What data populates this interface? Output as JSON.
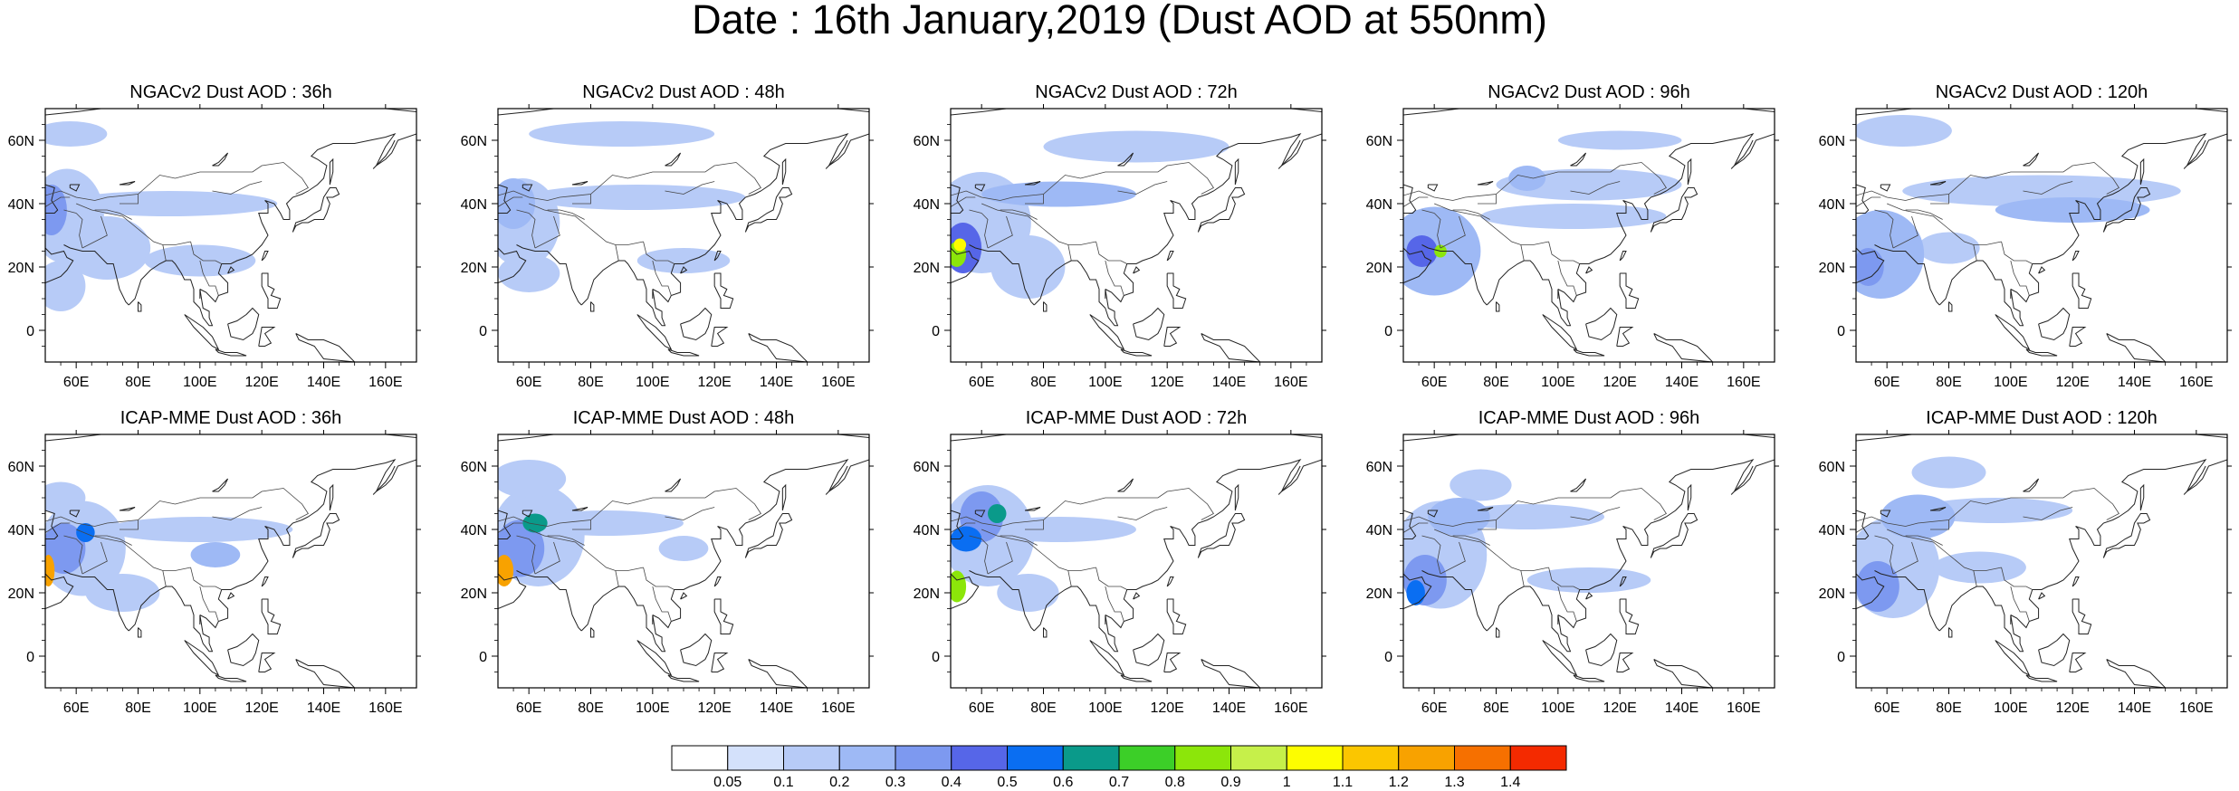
{
  "title": "Date : 16th January,2019 (Dust AOD at 550nm)",
  "axes": {
    "x_ticks": [
      "60E",
      "80E",
      "100E",
      "120E",
      "140E",
      "160E"
    ],
    "x_values": [
      60,
      80,
      100,
      120,
      140,
      160
    ],
    "y_ticks": [
      "60N",
      "40N",
      "20N",
      "0"
    ],
    "y_values": [
      60,
      40,
      20,
      0
    ],
    "lon_range": [
      50,
      170
    ],
    "lat_range": [
      -10,
      70
    ]
  },
  "colorbar": {
    "labels": [
      "0.05",
      "0.1",
      "0.2",
      "0.3",
      "0.4",
      "0.5",
      "0.6",
      "0.7",
      "0.8",
      "0.9",
      "1",
      "1.1",
      "1.2",
      "1.3",
      "1.4"
    ],
    "colors": [
      "#ffffff",
      "#d4e1fb",
      "#b7cbf7",
      "#9eb9f5",
      "#7d99f0",
      "#5666e8",
      "#0a6ef2",
      "#0a9a8a",
      "#3ccf28",
      "#8ce60a",
      "#c6f04a",
      "#fdfd00",
      "#fbc600",
      "#f8a200",
      "#f67000",
      "#f42a00"
    ]
  },
  "panels": [
    {
      "title": "NGACv2 Dust AOD : 36h",
      "blobs": [
        {
          "lon": 57,
          "lat": 36,
          "rlon": 12,
          "rlat": 15,
          "v": 0.1
        },
        {
          "lon": 52,
          "lat": 38,
          "rlon": 5,
          "rlat": 8,
          "v": 0.3
        },
        {
          "lon": 58,
          "lat": 62,
          "rlon": 12,
          "rlat": 4,
          "v": 0.1
        },
        {
          "lon": 70,
          "lat": 26,
          "rlon": 14,
          "rlat": 10,
          "v": 0.1
        },
        {
          "lon": 90,
          "lat": 40,
          "rlon": 35,
          "rlat": 4,
          "v": 0.1
        },
        {
          "lon": 55,
          "lat": 14,
          "rlon": 8,
          "rlat": 8,
          "v": 0.1
        },
        {
          "lon": 100,
          "lat": 22,
          "rlon": 18,
          "rlat": 5,
          "v": 0.1
        }
      ]
    },
    {
      "title": "NGACv2 Dust AOD : 48h",
      "blobs": [
        {
          "lon": 58,
          "lat": 34,
          "rlon": 12,
          "rlat": 14,
          "v": 0.1
        },
        {
          "lon": 55,
          "lat": 40,
          "rlon": 7,
          "rlat": 8,
          "v": 0.2
        },
        {
          "lon": 90,
          "lat": 62,
          "rlon": 30,
          "rlat": 4,
          "v": 0.1
        },
        {
          "lon": 95,
          "lat": 42,
          "rlon": 35,
          "rlat": 4,
          "v": 0.1
        },
        {
          "lon": 60,
          "lat": 18,
          "rlon": 10,
          "rlat": 6,
          "v": 0.1
        },
        {
          "lon": 110,
          "lat": 22,
          "rlon": 15,
          "rlat": 4,
          "v": 0.1
        }
      ]
    },
    {
      "title": "NGACv2 Dust AOD : 72h",
      "blobs": [
        {
          "lon": 60,
          "lat": 34,
          "rlon": 16,
          "rlat": 16,
          "v": 0.1
        },
        {
          "lon": 54,
          "lat": 26,
          "rlon": 6,
          "rlat": 8,
          "v": 0.4
        },
        {
          "lon": 52,
          "lat": 24,
          "rlon": 3,
          "rlat": 4,
          "v": 0.8
        },
        {
          "lon": 53,
          "lat": 27,
          "rlon": 2,
          "rlat": 2,
          "v": 1.0
        },
        {
          "lon": 110,
          "lat": 58,
          "rlon": 30,
          "rlat": 5,
          "v": 0.1
        },
        {
          "lon": 85,
          "lat": 43,
          "rlon": 25,
          "rlat": 4,
          "v": 0.2
        },
        {
          "lon": 75,
          "lat": 20,
          "rlon": 12,
          "rlat": 10,
          "v": 0.1
        }
      ]
    },
    {
      "title": "NGACv2 Dust AOD : 96h",
      "blobs": [
        {
          "lon": 60,
          "lat": 25,
          "rlon": 15,
          "rlat": 14,
          "v": 0.2
        },
        {
          "lon": 56,
          "lat": 25,
          "rlon": 5,
          "rlat": 5,
          "v": 0.4
        },
        {
          "lon": 62,
          "lat": 25,
          "rlon": 2,
          "rlat": 2,
          "v": 0.8
        },
        {
          "lon": 110,
          "lat": 46,
          "rlon": 30,
          "rlat": 5,
          "v": 0.1
        },
        {
          "lon": 105,
          "lat": 36,
          "rlon": 30,
          "rlat": 4,
          "v": 0.1
        },
        {
          "lon": 90,
          "lat": 48,
          "rlon": 6,
          "rlat": 4,
          "v": 0.2
        },
        {
          "lon": 120,
          "lat": 60,
          "rlon": 20,
          "rlat": 3,
          "v": 0.1
        }
      ]
    },
    {
      "title": "NGACv2 Dust AOD : 120h",
      "blobs": [
        {
          "lon": 58,
          "lat": 24,
          "rlon": 14,
          "rlat": 14,
          "v": 0.2
        },
        {
          "lon": 54,
          "lat": 20,
          "rlon": 5,
          "rlat": 6,
          "v": 0.3
        },
        {
          "lon": 65,
          "lat": 63,
          "rlon": 16,
          "rlat": 5,
          "v": 0.1
        },
        {
          "lon": 110,
          "lat": 44,
          "rlon": 45,
          "rlat": 5,
          "v": 0.1
        },
        {
          "lon": 120,
          "lat": 38,
          "rlon": 25,
          "rlat": 4,
          "v": 0.2
        },
        {
          "lon": 80,
          "lat": 26,
          "rlon": 10,
          "rlat": 5,
          "v": 0.1
        }
      ]
    },
    {
      "title": "ICAP-MME Dust AOD : 36h",
      "blobs": [
        {
          "lon": 62,
          "lat": 34,
          "rlon": 14,
          "rlat": 15,
          "v": 0.1
        },
        {
          "lon": 56,
          "lat": 34,
          "rlon": 7,
          "rlat": 8,
          "v": 0.3
        },
        {
          "lon": 51,
          "lat": 27,
          "rlon": 2,
          "rlat": 5,
          "v": 1.2
        },
        {
          "lon": 63,
          "lat": 39,
          "rlon": 3,
          "rlat": 3,
          "v": 0.5
        },
        {
          "lon": 55,
          "lat": 50,
          "rlon": 8,
          "rlat": 5,
          "v": 0.1
        },
        {
          "lon": 100,
          "lat": 40,
          "rlon": 30,
          "rlat": 4,
          "v": 0.1
        },
        {
          "lon": 105,
          "lat": 32,
          "rlon": 8,
          "rlat": 4,
          "v": 0.2
        },
        {
          "lon": 75,
          "lat": 20,
          "rlon": 12,
          "rlat": 6,
          "v": 0.1
        }
      ]
    },
    {
      "title": "ICAP-MME Dust AOD : 48h",
      "blobs": [
        {
          "lon": 63,
          "lat": 38,
          "rlon": 15,
          "rlat": 16,
          "v": 0.1
        },
        {
          "lon": 57,
          "lat": 34,
          "rlon": 8,
          "rlat": 9,
          "v": 0.3
        },
        {
          "lon": 52,
          "lat": 27,
          "rlon": 3,
          "rlat": 5,
          "v": 1.2
        },
        {
          "lon": 62,
          "lat": 42,
          "rlon": 4,
          "rlat": 3,
          "v": 0.6
        },
        {
          "lon": 60,
          "lat": 56,
          "rlon": 12,
          "rlat": 6,
          "v": 0.1
        },
        {
          "lon": 85,
          "lat": 42,
          "rlon": 25,
          "rlat": 4,
          "v": 0.1
        },
        {
          "lon": 110,
          "lat": 34,
          "rlon": 8,
          "rlat": 4,
          "v": 0.1
        }
      ]
    },
    {
      "title": "ICAP-MME Dust AOD : 72h",
      "blobs": [
        {
          "lon": 62,
          "lat": 38,
          "rlon": 15,
          "rlat": 16,
          "v": 0.1
        },
        {
          "lon": 60,
          "lat": 44,
          "rlon": 7,
          "rlat": 8,
          "v": 0.3
        },
        {
          "lon": 55,
          "lat": 37,
          "rlon": 5,
          "rlat": 4,
          "v": 0.5
        },
        {
          "lon": 52,
          "lat": 22,
          "rlon": 3,
          "rlat": 5,
          "v": 0.8
        },
        {
          "lon": 65,
          "lat": 45,
          "rlon": 3,
          "rlat": 3,
          "v": 0.6
        },
        {
          "lon": 85,
          "lat": 40,
          "rlon": 25,
          "rlat": 4,
          "v": 0.1
        },
        {
          "lon": 75,
          "lat": 20,
          "rlon": 10,
          "rlat": 6,
          "v": 0.1
        }
      ]
    },
    {
      "title": "ICAP-MME Dust AOD : 96h",
      "blobs": [
        {
          "lon": 62,
          "lat": 32,
          "rlon": 15,
          "rlat": 17,
          "v": 0.1
        },
        {
          "lon": 57,
          "lat": 24,
          "rlon": 7,
          "rlat": 8,
          "v": 0.3
        },
        {
          "lon": 54,
          "lat": 20,
          "rlon": 3,
          "rlat": 4,
          "v": 0.5
        },
        {
          "lon": 68,
          "lat": 44,
          "rlon": 10,
          "rlat": 6,
          "v": 0.2
        },
        {
          "lon": 90,
          "lat": 44,
          "rlon": 25,
          "rlat": 4,
          "v": 0.1
        },
        {
          "lon": 110,
          "lat": 24,
          "rlon": 20,
          "rlat": 4,
          "v": 0.1
        },
        {
          "lon": 75,
          "lat": 54,
          "rlon": 10,
          "rlat": 5,
          "v": 0.1
        }
      ]
    },
    {
      "title": "ICAP-MME Dust AOD : 120h",
      "blobs": [
        {
          "lon": 62,
          "lat": 28,
          "rlon": 15,
          "rlat": 16,
          "v": 0.1
        },
        {
          "lon": 57,
          "lat": 22,
          "rlon": 7,
          "rlat": 8,
          "v": 0.3
        },
        {
          "lon": 70,
          "lat": 44,
          "rlon": 12,
          "rlat": 7,
          "v": 0.2
        },
        {
          "lon": 80,
          "lat": 58,
          "rlon": 12,
          "rlat": 5,
          "v": 0.1
        },
        {
          "lon": 95,
          "lat": 46,
          "rlon": 25,
          "rlat": 4,
          "v": 0.1
        },
        {
          "lon": 90,
          "lat": 28,
          "rlon": 15,
          "rlat": 5,
          "v": 0.1
        }
      ]
    }
  ]
}
